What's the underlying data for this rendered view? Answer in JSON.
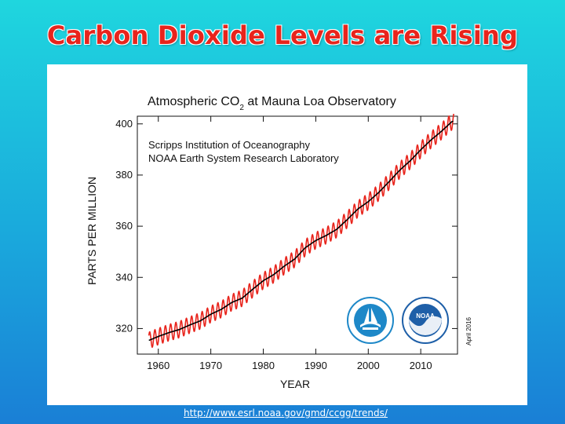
{
  "slide": {
    "title": "Carbon Dioxide Levels are Rising",
    "source_link": "http://www.esrl.noaa.gov/gmd/ccgg/trends/"
  },
  "colors": {
    "title": "#e8241c",
    "monthly_line": "#e8241c",
    "trend_line": "#000000",
    "scripps_logo": "#1e88c8",
    "noaa_logo": "#1e5fa8"
  },
  "logos": {
    "scripps": "scripps-logo-icon",
    "noaa": "noaa-logo-icon",
    "noaa_text": "NOAA"
  },
  "chart_data": {
    "type": "line",
    "title_main": "Atmospheric CO",
    "title_sub": "2",
    "title_rest": " at Mauna Loa Observatory",
    "xlabel": "YEAR",
    "ylabel": "PARTS PER MILLION",
    "annotations": [
      "Scripps Institution of Oceanography",
      "NOAA Earth System Research Laboratory"
    ],
    "date_stamp": "April 2016",
    "xlim": [
      1956,
      2017
    ],
    "ylim": [
      310,
      403
    ],
    "xticks": [
      1960,
      1970,
      1980,
      1990,
      2000,
      2010
    ],
    "yticks": [
      320,
      340,
      360,
      380,
      400
    ],
    "grid": false,
    "seasonal_amplitude_ppm": 3.2,
    "series": [
      {
        "kind": "trend",
        "x": [
          1958,
          1960,
          1962,
          1964,
          1966,
          1968,
          1970,
          1972,
          1974,
          1976,
          1978,
          1980,
          1982,
          1984,
          1986,
          1988,
          1990,
          1992,
          1994,
          1996,
          1998,
          2000,
          2002,
          2004,
          2006,
          2008,
          2010,
          2012,
          2014,
          2016
        ],
        "y": [
          315.2,
          316.9,
          318.4,
          319.6,
          321.4,
          323.0,
          325.6,
          327.5,
          330.2,
          331.9,
          335.4,
          338.7,
          341.1,
          344.4,
          347.2,
          351.6,
          354.4,
          356.4,
          358.8,
          362.6,
          366.7,
          369.6,
          373.2,
          377.5,
          381.9,
          385.6,
          389.9,
          393.8,
          397.2,
          401.0
        ]
      }
    ]
  }
}
